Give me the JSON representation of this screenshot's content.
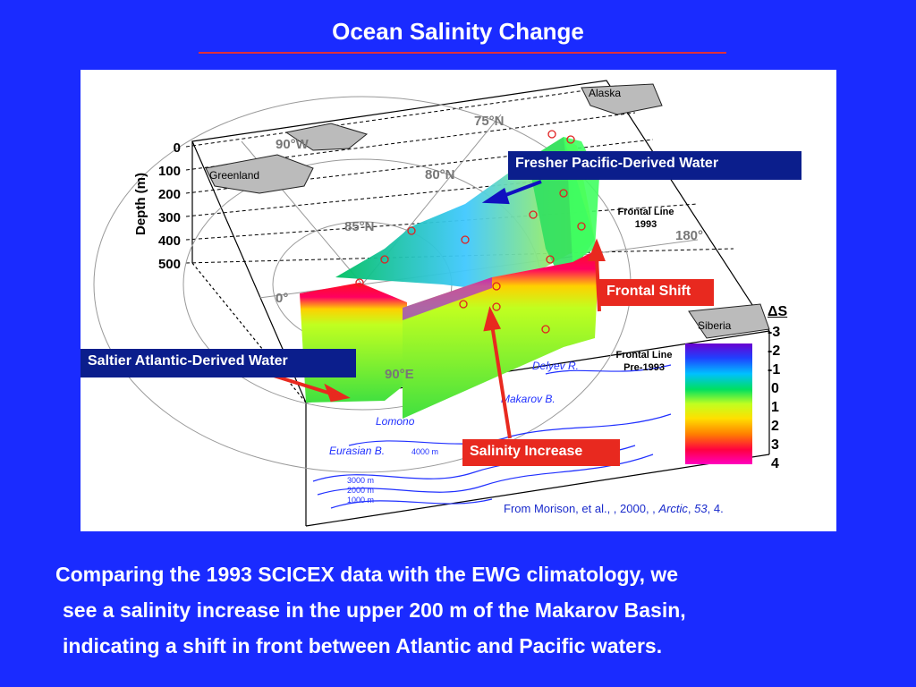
{
  "slide": {
    "title": "Ocean Salinity Change",
    "caption_lines": [
      "Comparing the 1993 SCICEX data with the EWG climatology, we",
      "see a salinity increase in the upper 200 m of the Makarov Basin,",
      "indicating a shift in front between Atlantic and Pacific waters."
    ],
    "citation": {
      "prefix": "From Morison, et al., , 2000, , ",
      "journal": "Arctic",
      "volume": "53",
      "suffix": ", 4."
    }
  },
  "figure": {
    "depth_axis_label": "Depth (m)",
    "depth_ticks": [
      "0",
      "100",
      "200",
      "300",
      "400",
      "500"
    ],
    "map_labels": {
      "alaska": "Alaska",
      "greenland": "Greenland",
      "siberia": "Siberia",
      "lat75": "75°N",
      "lat80": "80°N",
      "lat85": "85°N",
      "lon90w": "90°W",
      "lon0": "0°",
      "lon90e": "90°E",
      "lon180": "180°",
      "makarov": "Makarov B.",
      "eurasian": "Eurasian B.",
      "lomonosov": "Lomono",
      "gakkel": "Delyev R.",
      "contour4000": "4000 m",
      "contour3000": "3000 m",
      "contour2000": "2000 m",
      "contour1000": "1000 m"
    },
    "frontal_1993": [
      "Frontal Line",
      "1993"
    ],
    "frontal_pre1993": [
      "Frontal Line",
      "Pre-1993"
    ],
    "legend": {
      "title": "ΔS",
      "labels": [
        "-3",
        "-2",
        "-1",
        "0",
        "1",
        "2",
        "3",
        "4"
      ],
      "colors": [
        "#6a00d0",
        "#2040ff",
        "#00c0ff",
        "#00e060",
        "#c0ff20",
        "#ffe000",
        "#ff8000",
        "#ff0040",
        "#ff00c0"
      ]
    }
  },
  "callouts": {
    "pacific": "Fresher Pacific-Derived Water",
    "frontal_shift": "Frontal Shift",
    "atlantic": "Saltier Atlantic-Derived Water",
    "salinity_increase": "Salinity Increase"
  }
}
